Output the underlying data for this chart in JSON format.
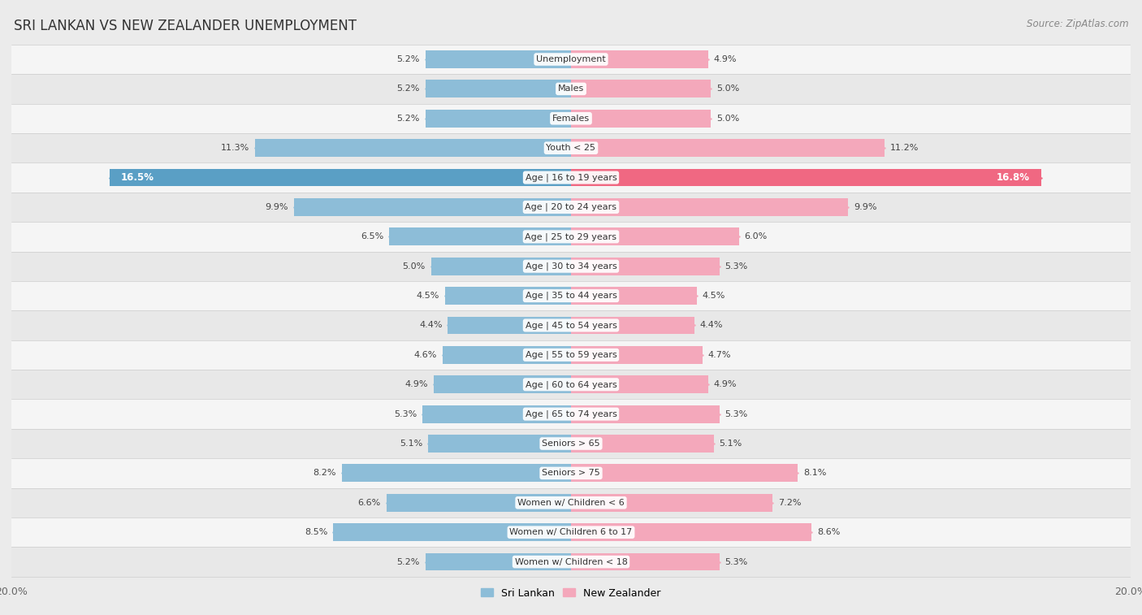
{
  "title": "SRI LANKAN VS NEW ZEALANDER UNEMPLOYMENT",
  "source": "Source: ZipAtlas.com",
  "categories": [
    "Unemployment",
    "Males",
    "Females",
    "Youth < 25",
    "Age | 16 to 19 years",
    "Age | 20 to 24 years",
    "Age | 25 to 29 years",
    "Age | 30 to 34 years",
    "Age | 35 to 44 years",
    "Age | 45 to 54 years",
    "Age | 55 to 59 years",
    "Age | 60 to 64 years",
    "Age | 65 to 74 years",
    "Seniors > 65",
    "Seniors > 75",
    "Women w/ Children < 6",
    "Women w/ Children 6 to 17",
    "Women w/ Children < 18"
  ],
  "sri_lankan": [
    5.2,
    5.2,
    5.2,
    11.3,
    16.5,
    9.9,
    6.5,
    5.0,
    4.5,
    4.4,
    4.6,
    4.9,
    5.3,
    5.1,
    8.2,
    6.6,
    8.5,
    5.2
  ],
  "new_zealander": [
    4.9,
    5.0,
    5.0,
    11.2,
    16.8,
    9.9,
    6.0,
    5.3,
    4.5,
    4.4,
    4.7,
    4.9,
    5.3,
    5.1,
    8.1,
    7.2,
    8.6,
    5.3
  ],
  "sri_lankan_color": "#8dbdd8",
  "new_zealander_color": "#f4a8bb",
  "highlight_sri_lankan_color": "#5a9fc5",
  "highlight_new_zealander_color": "#f06882",
  "row_color_odd": "#f5f5f5",
  "row_color_even": "#e8e8e8",
  "background_color": "#ebebeb",
  "max_val": 20.0,
  "legend_sri_lankan": "Sri Lankan",
  "legend_new_zealander": "New Zealander",
  "bar_height": 0.6
}
